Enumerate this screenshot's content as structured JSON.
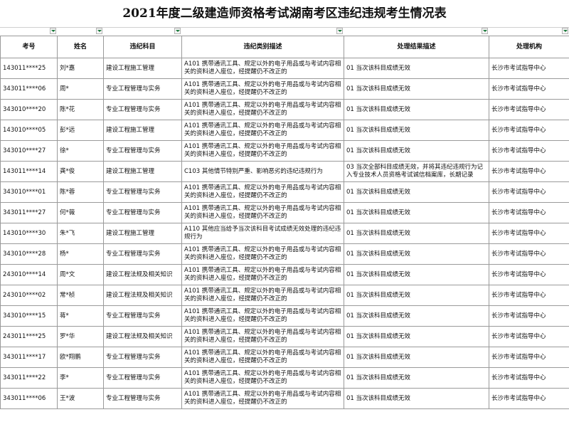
{
  "title": "2021年度二级建造师资格考试湖南考区违纪违规考生情况表",
  "table": {
    "headers": [
      "考号",
      "姓名",
      "违纪科目",
      "违纪类别描述",
      "处理结果描述",
      "处理机构"
    ],
    "rows": [
      [
        "143011****25",
        "刘*嘉",
        "建设工程施工管理",
        "A101   携带通讯工具、规定以外的电子用品或与考试内容相关的资料进入座位，经提醒仍不改正的",
        "01   当次该科目成绩无效",
        "长沙市考试指导中心"
      ],
      [
        "343011****06",
        "周*",
        "专业工程管理与实务",
        "A101   携带通讯工具、规定以外的电子用品或与考试内容相关的资料进入座位，经提醒仍不改正的",
        "01   当次该科目成绩无效",
        "长沙市考试指导中心"
      ],
      [
        "343010****20",
        "陈*花",
        "专业工程管理与实务",
        "A101   携带通讯工具、规定以外的电子用品或与考试内容相关的资料进入座位，经提醒仍不改正的",
        "01   当次该科目成绩无效",
        "长沙市考试指导中心"
      ],
      [
        "143010****05",
        "彭*远",
        "建设工程施工管理",
        "A101   携带通讯工具、规定以外的电子用品或与考试内容相关的资料进入座位，经提醒仍不改正的",
        "01   当次该科目成绩无效",
        "长沙市考试指导中心"
      ],
      [
        "343010****27",
        "徐*",
        "专业工程管理与实务",
        "A101   携带通讯工具、规定以外的电子用品或与考试内容相关的资料进入座位，经提醒仍不改正的",
        "01   当次该科目成绩无效",
        "长沙市考试指导中心"
      ],
      [
        "143011****14",
        "龚*俊",
        "建设工程施工管理",
        "C103   其他情节特别严重、影响恶劣的违纪违规行为",
        "03   当次全部科目成绩无效，并将其违纪违规行为记入专业技术人员资格考试诚信档案库，长期记录",
        "长沙市考试指导中心"
      ],
      [
        "343010****01",
        "陈*蓉",
        "专业工程管理与实务",
        "A101   携带通讯工具、规定以外的电子用品或与考试内容相关的资料进入座位，经提醒仍不改正的",
        "01   当次该科目成绩无效",
        "长沙市考试指导中心"
      ],
      [
        "343011****27",
        "何*薇",
        "专业工程管理与实务",
        "A101   携带通讯工具、规定以外的电子用品或与考试内容相关的资料进入座位，经提醒仍不改正的",
        "01   当次该科目成绩无效",
        "长沙市考试指导中心"
      ],
      [
        "143010****30",
        "朱*飞",
        "建设工程施工管理",
        "A110   其他应当给予当次该科目考试成绩无效处理的违纪违规行为",
        "01   当次该科目成绩无效",
        "长沙市考试指导中心"
      ],
      [
        "343010****28",
        "杨*",
        "专业工程管理与实务",
        "A101   携带通讯工具、规定以外的电子用品或与考试内容相关的资料进入座位，经提醒仍不改正的",
        "01   当次该科目成绩无效",
        "长沙市考试指导中心"
      ],
      [
        "243010****14",
        "周*文",
        "建设工程法规及相关知识",
        "A101   携带通讯工具、规定以外的电子用品或与考试内容相关的资料进入座位，经提醒仍不改正的",
        "01   当次该科目成绩无效",
        "长沙市考试指导中心"
      ],
      [
        "243010****02",
        "常*桢",
        "建设工程法规及相关知识",
        "A101   携带通讯工具、规定以外的电子用品或与考试内容相关的资料进入座位，经提醒仍不改正的",
        "01   当次该科目成绩无效",
        "长沙市考试指导中心"
      ],
      [
        "343010****15",
        "蒋*",
        "专业工程管理与实务",
        "A101   携带通讯工具、规定以外的电子用品或与考试内容相关的资料进入座位，经提醒仍不改正的",
        "01   当次该科目成绩无效",
        "长沙市考试指导中心"
      ],
      [
        "243011****25",
        "罗*华",
        "建设工程法规及相关知识",
        "A101   携带通讯工具、规定以外的电子用品或与考试内容相关的资料进入座位，经提醒仍不改正的",
        "01   当次该科目成绩无效",
        "长沙市考试指导中心"
      ],
      [
        "343011****17",
        "欧*翔鹏",
        "专业工程管理与实务",
        "A101   携带通讯工具、规定以外的电子用品或与考试内容相关的资料进入座位，经提醒仍不改正的",
        "01   当次该科目成绩无效",
        "长沙市考试指导中心"
      ],
      [
        "343011****22",
        "李*",
        "专业工程管理与实务",
        "A101   携带通讯工具、规定以外的电子用品或与考试内容相关的资料进入座位，经提醒仍不改正的",
        "01   当次该科目成绩无效",
        "长沙市考试指导中心"
      ],
      [
        "343011****06",
        "王*波",
        "专业工程管理与实务",
        "A101   携带通讯工具、规定以外的电子用品或与考试内容相关的资料进入座位，经提醒仍不改正的",
        "01   当次该科目成绩无效",
        "长沙市考试指导中心"
      ]
    ]
  }
}
